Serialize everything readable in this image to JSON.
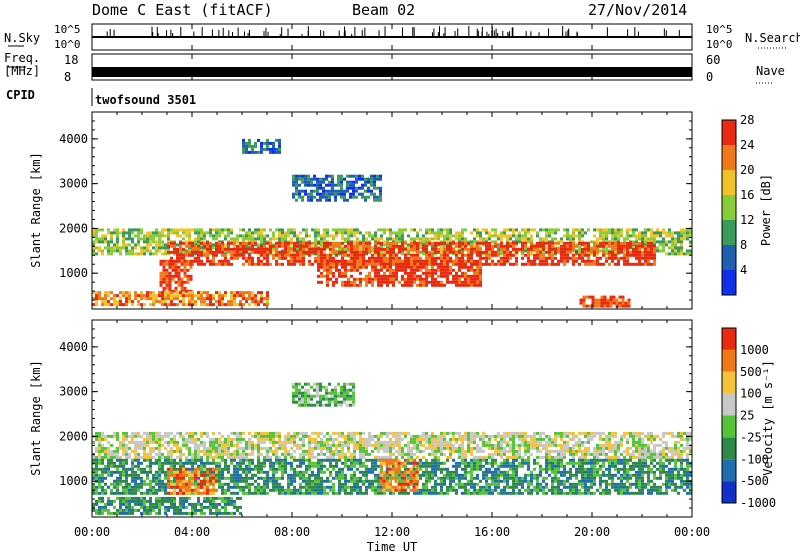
{
  "header": {
    "station": "Dome C East (fitACF)",
    "beam": "Beam 02",
    "date": "27/Nov/2014"
  },
  "params": {
    "nsky_label": "N.Sky",
    "nsky_tick_top": "10^5",
    "nsky_tick_bottom": "10^0",
    "nsearch_label": "N.Search",
    "nsearch_tick_top": "10^5",
    "nsearch_tick_bottom": "10^0",
    "freq_label": "Freq.",
    "freq_unit": "[MHz]",
    "freq_tick_top": "18",
    "freq_tick_bottom": "8",
    "nave_label": "Nave",
    "nave_tick_top": "60",
    "nave_tick_bottom": "0",
    "cpid_label": "CPID",
    "cpid_value": "twofsound 3501"
  },
  "chart_data": [
    {
      "type": "heatmap",
      "name": "power",
      "ylabel": "Slant Range [km]",
      "yticks": [
        "1000",
        "2000",
        "3000",
        "4000"
      ],
      "ylim": [
        200,
        4600
      ],
      "xlim_hours": [
        0,
        24
      ],
      "colorbar": {
        "label": "Power [dB]",
        "ticks": [
          "4",
          "8",
          "12",
          "16",
          "20",
          "24",
          "28"
        ],
        "colors": [
          "#1030e8",
          "#1f5fb0",
          "#3a9a5a",
          "#8acb3a",
          "#f2c22a",
          "#f07a1a",
          "#e82a10"
        ]
      },
      "bands": [
        {
          "t0": 0.0,
          "t1": 24.0,
          "r0": 1400,
          "r1": 2000,
          "level": 3
        },
        {
          "t0": 3.0,
          "t1": 22.5,
          "r0": 1200,
          "r1": 1700,
          "level": 6
        },
        {
          "t0": 2.7,
          "t1": 4.0,
          "r0": 600,
          "r1": 1300,
          "level": 6
        },
        {
          "t0": 9.0,
          "t1": 15.5,
          "r0": 700,
          "r1": 1300,
          "level": 6
        },
        {
          "t0": 0.0,
          "t1": 7.0,
          "r0": 300,
          "r1": 600,
          "level": 5
        },
        {
          "t0": 19.5,
          "t1": 21.5,
          "r0": 250,
          "r1": 500,
          "level": 6
        },
        {
          "t0": 8.0,
          "t1": 11.5,
          "r0": 2600,
          "r1": 3200,
          "level": 1
        },
        {
          "t0": 6.0,
          "t1": 7.5,
          "r0": 3700,
          "r1": 4000,
          "level": 1
        }
      ]
    },
    {
      "type": "heatmap",
      "name": "velocity",
      "ylabel": "Slant Range [km]",
      "yticks": [
        "1000",
        "2000",
        "3000",
        "4000"
      ],
      "ylim": [
        200,
        4600
      ],
      "xlim_hours": [
        0,
        24
      ],
      "colorbar": {
        "label": "Velocity [m s⁻¹]",
        "ticks": [
          "1000",
          "500",
          "100",
          "25",
          "-25",
          "-100",
          "-500",
          "-1000"
        ],
        "colors": [
          "#1030c8",
          "#1f6fb0",
          "#2f8a4a",
          "#56c43a",
          "#c8c8c8",
          "#f5c23a",
          "#f07a1a",
          "#e82a10"
        ]
      },
      "bands": [
        {
          "t0": 0.0,
          "t1": 24.0,
          "r0": 1500,
          "r1": 2100,
          "level": 4
        },
        {
          "t0": 0.0,
          "t1": 24.0,
          "r0": 700,
          "r1": 1500,
          "level": 2
        },
        {
          "t0": 3.0,
          "t1": 5.0,
          "r0": 700,
          "r1": 1300,
          "level": 6
        },
        {
          "t0": 11.5,
          "t1": 13.0,
          "r0": 800,
          "r1": 1500,
          "level": 6
        },
        {
          "t0": 0.0,
          "t1": 6.0,
          "r0": 300,
          "r1": 650,
          "level": 2
        },
        {
          "t0": 8.0,
          "t1": 10.5,
          "r0": 2700,
          "r1": 3200,
          "level": 3
        }
      ]
    }
  ],
  "time_axis": {
    "label": "Time UT",
    "ticks": [
      "00:00",
      "04:00",
      "08:00",
      "12:00",
      "16:00",
      "20:00",
      "00:00"
    ]
  }
}
